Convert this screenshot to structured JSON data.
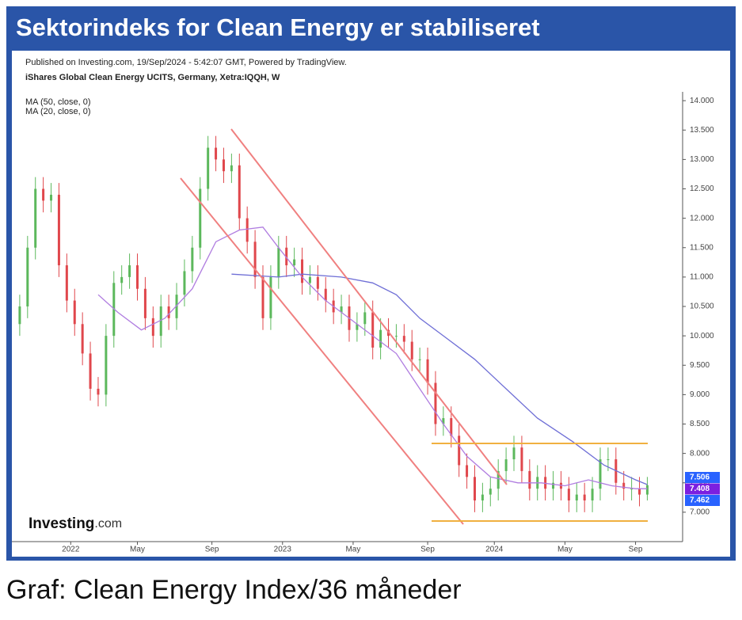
{
  "header": {
    "title": "Sektorindeks for Clean Energy er stabiliseret"
  },
  "caption": "Graf: Clean Energy Index/36 måneder",
  "chart_data": {
    "type": "candlestick",
    "title": "iShares Global Clean Energy UCITS, Germany, Xetra:IQQH, W",
    "subtitle": "Published on Investing.com, 19/Sep/2024 - 5:42:07 GMT, Powered by TradingView.",
    "logo": {
      "brand": "Investing",
      "suffix": ".com"
    },
    "up_color": "#5cb85c",
    "down_color": "#e0474c",
    "x": [
      0,
      2,
      4,
      6,
      8,
      10,
      12,
      14,
      16,
      18,
      20,
      22,
      24,
      26,
      28,
      30,
      32,
      34,
      36,
      38,
      40,
      42,
      44,
      46,
      48,
      50,
      52,
      54,
      56,
      58,
      60,
      62,
      64,
      66,
      68,
      70,
      72,
      74,
      76,
      78,
      80,
      82,
      84,
      86,
      88,
      90,
      92,
      94,
      96,
      98,
      100,
      102,
      104,
      106,
      108,
      110,
      112,
      114,
      116,
      118,
      120,
      122,
      124,
      126,
      128,
      130,
      132,
      134,
      136,
      138,
      140,
      142,
      144,
      146,
      148,
      150,
      152,
      154,
      156,
      158,
      160
    ],
    "open": [
      10.2,
      10.5,
      11.5,
      12.5,
      12.3,
      12.4,
      11.2,
      10.6,
      10.2,
      9.7,
      9.1,
      9.0,
      10.0,
      10.9,
      11.0,
      11.2,
      10.8,
      10.3,
      10.0,
      10.5,
      10.3,
      10.7,
      11.1,
      11.5,
      12.5,
      13.2,
      13.0,
      12.8,
      12.9,
      12.0,
      11.6,
      11.0,
      10.3,
      11.0,
      11.5,
      11.2,
      11.3,
      10.9,
      11.0,
      10.8,
      10.6,
      10.4,
      10.5,
      10.1,
      10.2,
      10.4,
      9.8,
      10.1,
      10.0,
      10.0,
      9.9,
      9.6,
      9.6,
      9.2,
      8.5,
      8.6,
      8.3,
      7.8,
      7.6,
      7.2,
      7.3,
      7.4,
      7.7,
      7.9,
      8.1,
      7.7,
      7.4,
      7.6,
      7.4,
      7.5,
      7.4,
      7.2,
      7.3,
      7.2,
      7.4,
      7.9,
      7.9,
      7.5,
      7.4,
      7.4,
      7.3
    ],
    "high": [
      10.7,
      11.7,
      12.7,
      12.7,
      12.6,
      12.6,
      11.4,
      10.8,
      10.4,
      9.9,
      9.3,
      10.2,
      11.1,
      11.2,
      11.4,
      11.4,
      11.0,
      10.5,
      10.7,
      10.7,
      10.9,
      11.3,
      11.7,
      12.7,
      13.4,
      13.4,
      13.2,
      13.1,
      13.1,
      12.2,
      11.8,
      11.2,
      11.2,
      11.7,
      11.7,
      11.5,
      11.5,
      11.2,
      11.2,
      11.0,
      10.8,
      10.7,
      10.7,
      10.4,
      10.6,
      10.6,
      10.3,
      10.3,
      10.2,
      10.2,
      10.1,
      9.8,
      9.8,
      9.4,
      8.8,
      8.8,
      8.5,
      8.0,
      7.8,
      7.5,
      7.6,
      7.9,
      8.1,
      8.3,
      8.3,
      7.9,
      7.8,
      7.8,
      7.7,
      7.7,
      7.6,
      7.5,
      7.5,
      7.6,
      8.1,
      8.1,
      8.1,
      7.7,
      7.6,
      7.6,
      7.6
    ],
    "low": [
      10.0,
      10.3,
      11.3,
      12.1,
      12.1,
      11.0,
      10.4,
      10.0,
      9.5,
      8.9,
      8.8,
      8.8,
      9.8,
      10.7,
      10.8,
      10.6,
      10.1,
      9.8,
      9.8,
      10.1,
      10.1,
      10.5,
      10.9,
      11.3,
      12.3,
      12.8,
      12.6,
      12.6,
      11.8,
      11.4,
      10.8,
      10.1,
      10.1,
      10.8,
      11.0,
      11.0,
      10.7,
      10.7,
      10.6,
      10.4,
      10.2,
      10.2,
      9.9,
      9.9,
      10.0,
      9.6,
      9.6,
      9.8,
      9.8,
      9.7,
      9.4,
      9.4,
      9.0,
      8.3,
      8.3,
      8.1,
      7.6,
      7.4,
      7.0,
      7.0,
      7.1,
      7.2,
      7.5,
      7.7,
      7.5,
      7.2,
      7.2,
      7.2,
      7.2,
      7.2,
      7.0,
      7.0,
      7.0,
      7.0,
      7.2,
      7.7,
      7.3,
      7.2,
      7.2,
      7.1,
      7.2
    ],
    "close": [
      10.5,
      11.5,
      12.5,
      12.3,
      12.4,
      11.2,
      10.6,
      10.2,
      9.7,
      9.1,
      9.0,
      10.0,
      10.9,
      11.0,
      11.2,
      10.8,
      10.3,
      10.0,
      10.5,
      10.3,
      10.7,
      11.1,
      11.5,
      12.5,
      13.2,
      13.0,
      12.8,
      12.9,
      12.0,
      11.6,
      11.0,
      10.3,
      11.0,
      11.5,
      11.2,
      11.3,
      10.9,
      11.0,
      10.8,
      10.6,
      10.4,
      10.5,
      10.1,
      10.2,
      10.4,
      9.8,
      10.1,
      10.0,
      10.0,
      9.9,
      9.6,
      9.6,
      9.2,
      8.5,
      8.6,
      8.3,
      7.8,
      7.6,
      7.2,
      7.3,
      7.4,
      7.7,
      7.9,
      8.1,
      7.7,
      7.4,
      7.6,
      7.4,
      7.5,
      7.4,
      7.2,
      7.3,
      7.2,
      7.4,
      7.9,
      7.9,
      7.5,
      7.4,
      7.4,
      7.3,
      7.46
    ],
    "series": [
      {
        "name": "MA (50, close, 0)",
        "color": "#6f6fd6",
        "x": [
          54,
          66,
          72,
          82,
          90,
          96,
          102,
          108,
          116,
          124,
          132,
          141,
          149,
          157,
          160
        ],
        "values": [
          11.05,
          11.0,
          11.05,
          11.0,
          10.9,
          10.7,
          10.3,
          10.0,
          9.6,
          9.1,
          8.6,
          8.2,
          7.8,
          7.55,
          7.47
        ]
      },
      {
        "name": "MA (20, close, 0)",
        "color": "#b07de0",
        "x": [
          20,
          25,
          31,
          37,
          44,
          50,
          56,
          62,
          66,
          72,
          78,
          84,
          90,
          96,
          102,
          108,
          114,
          120,
          127,
          133,
          139,
          145,
          151,
          157,
          160
        ],
        "values": [
          10.7,
          10.4,
          10.1,
          10.3,
          10.8,
          11.6,
          11.8,
          11.85,
          11.5,
          11.0,
          10.6,
          10.3,
          10.0,
          9.7,
          9.1,
          8.5,
          7.95,
          7.6,
          7.5,
          7.5,
          7.45,
          7.55,
          7.45,
          7.4,
          7.4
        ]
      }
    ],
    "price_tags": [
      {
        "value": 7.506,
        "label": "7.506",
        "color": "#2962ff"
      },
      {
        "value": 7.408,
        "label": "7.408",
        "color": "#7b1fe0"
      },
      {
        "value": 7.462,
        "label": "7.462",
        "color": "#2962ff"
      }
    ],
    "xlim": [
      -2,
      169
    ],
    "xticks": [
      {
        "value": 13,
        "label": "2022"
      },
      {
        "value": 30,
        "label": "May"
      },
      {
        "value": 49,
        "label": "Sep"
      },
      {
        "value": 67,
        "label": "2023"
      },
      {
        "value": 85,
        "label": "May"
      },
      {
        "value": 104,
        "label": "Sep"
      },
      {
        "value": 121,
        "label": "2024"
      },
      {
        "value": 139,
        "label": "May"
      },
      {
        "value": 157,
        "label": "Sep"
      }
    ],
    "ylim": [
      6.5,
      14.15
    ],
    "yticks": [
      {
        "value": 7,
        "label": "7.000"
      },
      {
        "value": 7.5,
        "label": "7.500"
      },
      {
        "value": 8,
        "label": "8.000"
      },
      {
        "value": 8.5,
        "label": "8.500"
      },
      {
        "value": 9,
        "label": "9.000"
      },
      {
        "value": 9.5,
        "label": "9.500"
      },
      {
        "value": 10,
        "label": "10.000"
      },
      {
        "value": 10.5,
        "label": "10.500"
      },
      {
        "value": 11,
        "label": "11.000"
      },
      {
        "value": 11.5,
        "label": "11.500"
      },
      {
        "value": 12,
        "label": "12.000"
      },
      {
        "value": 12.5,
        "label": "12.500"
      },
      {
        "value": 13,
        "label": "13.000"
      },
      {
        "value": 13.5,
        "label": "13.500"
      },
      {
        "value": 14,
        "label": "14.000"
      }
    ]
  }
}
